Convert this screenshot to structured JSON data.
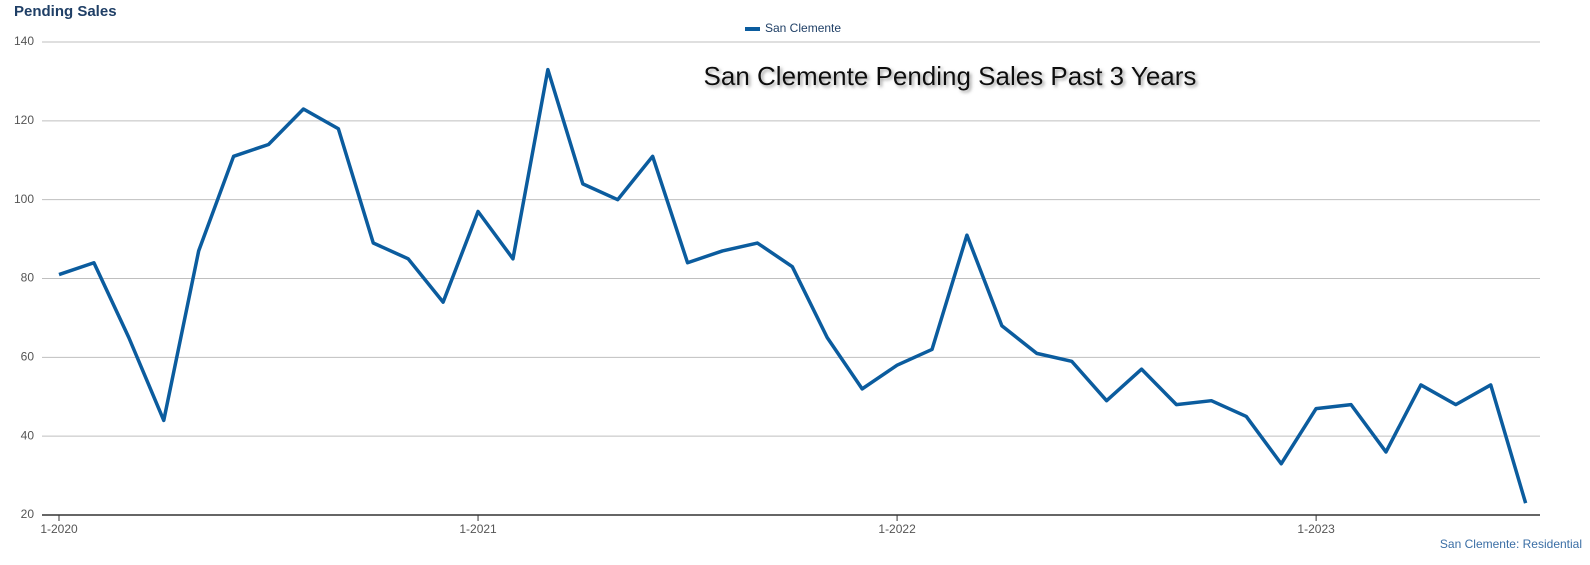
{
  "chart_data": {
    "type": "line",
    "title": "Pending Sales",
    "annotation": "San Clemente Pending Sales Past 3 Years",
    "footer": "San Clemente: Residential",
    "categories": [
      "1-2020",
      null,
      null,
      null,
      null,
      null,
      null,
      null,
      null,
      null,
      null,
      null,
      "1-2021",
      null,
      null,
      null,
      null,
      null,
      null,
      null,
      null,
      null,
      null,
      null,
      "1-2022",
      null,
      null,
      null,
      null,
      null,
      null,
      null,
      null,
      null,
      null,
      null,
      "1-2023",
      null,
      null,
      null,
      null,
      null,
      null
    ],
    "series": [
      {
        "name": "San Clemente",
        "color": "#0b5c9e",
        "values": [
          81,
          84,
          65,
          44,
          87,
          111,
          114,
          123,
          118,
          89,
          85,
          74,
          97,
          85,
          133,
          104,
          100,
          111,
          84,
          87,
          89,
          83,
          65,
          52,
          58,
          62,
          91,
          68,
          61,
          59,
          49,
          57,
          48,
          49,
          45,
          33,
          47,
          48,
          36,
          53,
          48,
          53,
          23
        ]
      }
    ],
    "ylim": [
      20,
      140
    ],
    "yticks": [
      20,
      40,
      60,
      80,
      100,
      120,
      140
    ],
    "grid": true,
    "legend": "top"
  }
}
